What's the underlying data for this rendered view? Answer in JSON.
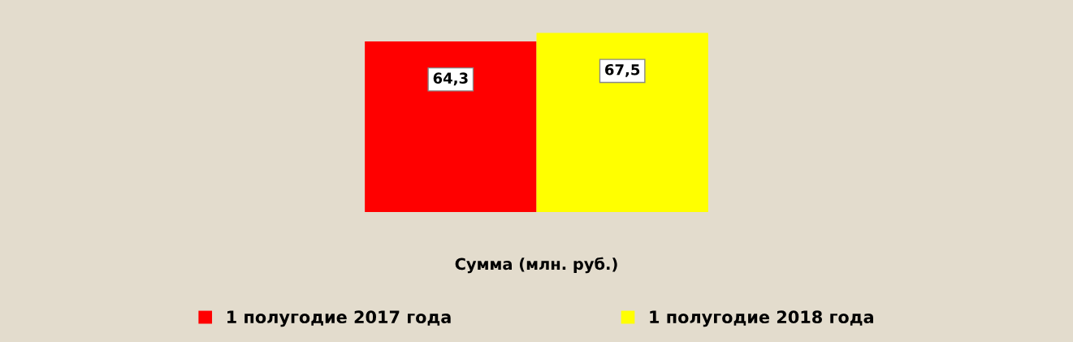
{
  "chart_data": {
    "type": "bar",
    "categories": [
      null
    ],
    "xlabel": "Сумма (млн. руб.)",
    "series": [
      {
        "name": "1 полугодие 2017 года",
        "color": "#ff0000",
        "values": [
          64.3
        ],
        "value_labels": [
          "64,3"
        ]
      },
      {
        "name": "1 полугодие 2018 года",
        "color": "#ffff00",
        "values": [
          67.5
        ],
        "value_labels": [
          "67,5"
        ]
      }
    ],
    "data_labels": true,
    "legend": "bottom",
    "grid": false
  }
}
